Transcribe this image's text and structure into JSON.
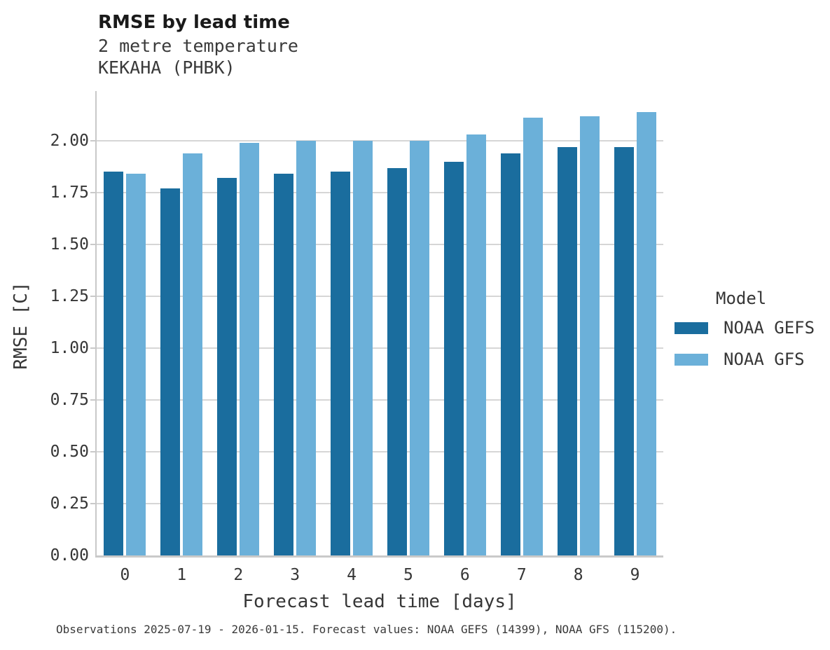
{
  "chart_data": {
    "type": "bar",
    "title": "RMSE by lead time",
    "subtitle": "2 metre temperature",
    "station": "KEKAHA (PHBK)",
    "xlabel": "Forecast lead time [days]",
    "ylabel": "RMSE [C]",
    "categories": [
      "0",
      "1",
      "2",
      "3",
      "4",
      "5",
      "6",
      "7",
      "8",
      "9"
    ],
    "series": [
      {
        "name": "NOAA GEFS",
        "color": "#1a6d9e",
        "values": [
          1.85,
          1.77,
          1.82,
          1.84,
          1.85,
          1.87,
          1.9,
          1.94,
          1.97,
          1.97
        ]
      },
      {
        "name": "NOAA GFS",
        "color": "#6bb0d9",
        "values": [
          1.84,
          1.94,
          1.99,
          2.0,
          2.0,
          2.0,
          2.03,
          2.11,
          2.12,
          2.14
        ]
      }
    ],
    "ylim": [
      0,
      2.24
    ],
    "yticks": [
      0.0,
      0.25,
      0.5,
      0.75,
      1.0,
      1.25,
      1.5,
      1.75,
      2.0
    ],
    "grid": true,
    "legend_title": "Model",
    "legend_position": "right",
    "caption": "Observations 2025-07-19 - 2026-01-15. Forecast values: NOAA GEFS (14399), NOAA GFS (115200)."
  },
  "colors": {
    "grid": "#d6d6d6",
    "spine": "#c9c9c9",
    "title_text": "#1a1a1a",
    "body_text": "#363636"
  }
}
